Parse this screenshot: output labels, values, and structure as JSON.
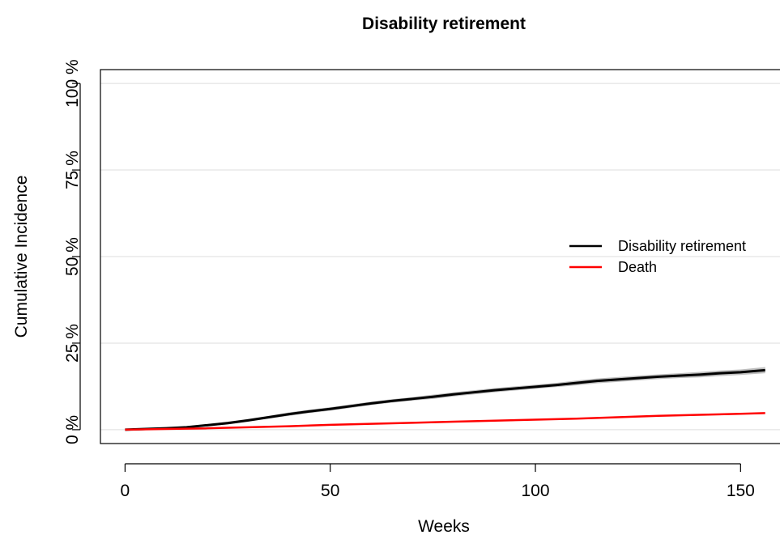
{
  "chart_data": {
    "type": "line",
    "title": "Disability retirement",
    "xlabel": "Weeks",
    "ylabel": "Cumulative Incidence",
    "xlim": [
      -6,
      160
    ],
    "ylim": [
      -4,
      104
    ],
    "x_ticks": [
      0,
      50,
      100,
      150
    ],
    "y_ticks": [
      0,
      25,
      50,
      75,
      100
    ],
    "y_tick_labels": [
      "0 %",
      "25 %",
      "50 %",
      "75 %",
      "100 %"
    ],
    "gridlines": "horizontal",
    "legend_position": "right",
    "confidence_band_color": "#bfbfbf",
    "series": [
      {
        "name": "Disability retirement",
        "color": "#000000",
        "x": [
          0,
          5,
          10,
          15,
          20,
          25,
          30,
          35,
          40,
          45,
          50,
          55,
          60,
          65,
          70,
          75,
          80,
          85,
          90,
          95,
          100,
          105,
          110,
          115,
          120,
          125,
          130,
          135,
          140,
          145,
          150,
          156
        ],
        "y": [
          0,
          0.2,
          0.4,
          0.7,
          1.3,
          1.9,
          2.7,
          3.6,
          4.5,
          5.3,
          6.0,
          6.8,
          7.6,
          8.3,
          8.9,
          9.5,
          10.2,
          10.8,
          11.4,
          11.9,
          12.4,
          12.9,
          13.5,
          14.1,
          14.5,
          14.9,
          15.3,
          15.6,
          15.9,
          16.3,
          16.6,
          17.2
        ],
        "ci_halfwidth": [
          0,
          0.1,
          0.2,
          0.3,
          0.3,
          0.4,
          0.4,
          0.4,
          0.5,
          0.5,
          0.5,
          0.5,
          0.5,
          0.5,
          0.5,
          0.6,
          0.6,
          0.6,
          0.6,
          0.6,
          0.6,
          0.6,
          0.7,
          0.7,
          0.7,
          0.7,
          0.7,
          0.7,
          0.8,
          0.8,
          0.8,
          0.9
        ]
      },
      {
        "name": "Death",
        "color": "#ff0000",
        "x": [
          0,
          10,
          20,
          30,
          40,
          50,
          60,
          70,
          80,
          90,
          100,
          110,
          120,
          130,
          140,
          150,
          156
        ],
        "y": [
          0,
          0.2,
          0.4,
          0.7,
          1.0,
          1.4,
          1.7,
          2.0,
          2.3,
          2.6,
          2.9,
          3.2,
          3.6,
          4.0,
          4.3,
          4.6,
          4.8
        ]
      }
    ]
  }
}
